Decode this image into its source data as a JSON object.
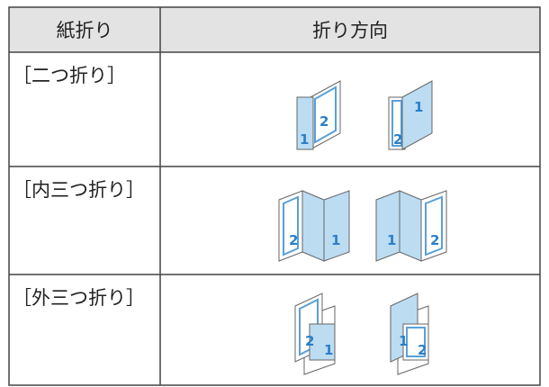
{
  "header": [
    "紙折り",
    "折り方向"
  ],
  "rows": [
    {
      "label": "［二つ折り］",
      "icons": [
        [
          "1",
          "2"
        ],
        [
          "2",
          "1"
        ]
      ]
    },
    {
      "label": "［内三つ折り］",
      "icons": [
        [
          "2",
          "1"
        ],
        [
          "1",
          "2"
        ]
      ]
    },
    {
      "label": "［外三つ折り］",
      "icons": [
        [
          "2",
          "1"
        ],
        [
          "1",
          "2"
        ]
      ]
    }
  ]
}
